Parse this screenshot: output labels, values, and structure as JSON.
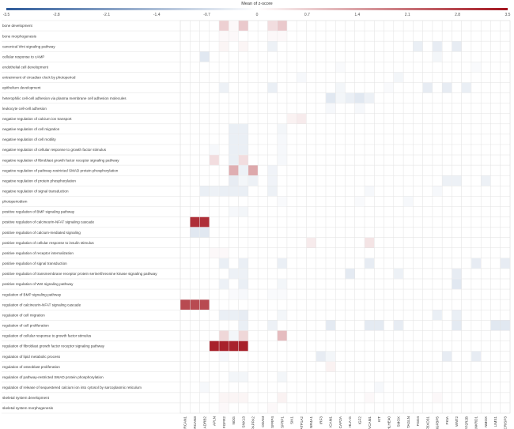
{
  "chart_data": {
    "type": "heatmap",
    "title": "Mean of z-score",
    "colorbar": {
      "min": -3.5,
      "max": 3.5,
      "ticks": [
        "-3.5",
        "-2.8",
        "-2.1",
        "-1.4",
        "-0.7",
        "0",
        "0.7",
        "1.4",
        "2.1",
        "2.8",
        "3.5"
      ],
      "colors": {
        "neg": "#2e5b9a",
        "mid": "#ffffff",
        "pos": "#a3141e"
      }
    },
    "grid": true,
    "rows": [
      "bone development",
      "bone morphogenesis",
      "canonical Wnt signaling pathway",
      "cellular response to cAMP",
      "endothelial cell development",
      "entrainment of circadian clock by photoperiod",
      "epithelium development",
      "heterophilic cell-cell adhesion via plasma membrane cell adhesion molecules",
      "leukocyte cell-cell adhesion",
      "negative regulation of calcium ion transport",
      "negative regulation of cell migration",
      "negative regulation of cell motility",
      "negative regulation of cellular response to growth factor stimulus",
      "negative regulation of fibroblast growth factor receptor signaling pathway",
      "negative regulation of pathway-restricted SMAD protein phosphorylation",
      "negative regulation of protein phosphorylation",
      "negative regulation of signal transduction",
      "photoperiodism",
      "positive regulation of BMP signaling pathway",
      "positive regulation of calcineurin-NFAT signaling cascade",
      "positive regulation of calcium-mediated signaling",
      "positive regulation of cellular response to insulin stimulus",
      "positive regulation of receptor internalization",
      "positive regulation of signal transduction",
      "positive regulation of transmembrane receptor protein serine/threonine kinase signaling pathway",
      "positive regulation of Wnt signaling pathway",
      "regulation of BMP signaling pathway",
      "regulation of calcineurin-NFAT signaling cascade",
      "regulation of cell migration",
      "regulation of cell proliferation",
      "regulation of cellular response to growth factor stimulus",
      "regulation of fibroblast growth factor receptor signaling pathway",
      "regulation of lipid metabolic process",
      "regulation of osteoblast proliferation",
      "regulation of pathway-restricted SMAD protein phosphorylation",
      "regulation of release of sequestered calcium ion into cytosol by sarcoplasmic reticulum",
      "skeletal system development",
      "skeletal system morphogenesis"
    ],
    "columns": [
      "RCAN1",
      "RCAN3",
      "ADRB2",
      "APLN",
      "FGFR2",
      "NOG",
      "SNX13",
      "PAPPA2",
      "ODAM",
      "SFRP4",
      "SFRP1",
      "SIK1",
      "ATP1A2",
      "NR4A1",
      "IRF3",
      "ICAM1",
      "CAPZA",
      "HLA-G",
      "IGF2",
      "VCAM1",
      "KIT",
      "BHLHE40",
      "SMOX",
      "TAGLN",
      "FGD4",
      "FBXO31",
      "IGFBP5",
      "PKIA",
      "WNT2",
      "PPP2R2B",
      "ANKRD1",
      "NMOX",
      "LIMS1",
      "CRISP3"
    ],
    "cells": [
      [
        0,
        4,
        0.7
      ],
      [
        0,
        5,
        0.1
      ],
      [
        0,
        6,
        0.8
      ],
      [
        0,
        9,
        0.5
      ],
      [
        0,
        10,
        0.8
      ],
      [
        1,
        4,
        0.1
      ],
      [
        1,
        5,
        0.1
      ],
      [
        1,
        9,
        0.1
      ],
      [
        1,
        10,
        0.1
      ],
      [
        2,
        4,
        0.15
      ],
      [
        2,
        6,
        0.15
      ],
      [
        2,
        9,
        -0.3
      ],
      [
        2,
        26,
        -0.4
      ],
      [
        2,
        28,
        -0.4
      ],
      [
        2,
        24,
        -0.35
      ],
      [
        3,
        2,
        -0.5
      ],
      [
        3,
        26,
        -0.2
      ],
      [
        4,
        16,
        -0.1
      ],
      [
        4,
        30,
        -0.1
      ],
      [
        5,
        12,
        -0.15
      ],
      [
        5,
        22,
        -0.2
      ],
      [
        6,
        4,
        -0.3
      ],
      [
        6,
        9,
        -0.35
      ],
      [
        6,
        16,
        -0.2
      ],
      [
        6,
        21,
        -0.1
      ],
      [
        6,
        25,
        -0.4
      ],
      [
        6,
        27,
        -0.4
      ],
      [
        6,
        29,
        -0.35
      ],
      [
        7,
        15,
        -0.5
      ],
      [
        7,
        16,
        -0.2
      ],
      [
        7,
        17,
        -0.35
      ],
      [
        7,
        18,
        -0.5
      ],
      [
        7,
        19,
        -0.3
      ],
      [
        8,
        15,
        -0.15
      ],
      [
        8,
        18,
        -0.15
      ],
      [
        9,
        11,
        0.2
      ],
      [
        9,
        12,
        0.3
      ],
      [
        10,
        5,
        -0.35
      ],
      [
        10,
        6,
        -0.35
      ],
      [
        10,
        10,
        -0.2
      ],
      [
        11,
        5,
        -0.35
      ],
      [
        11,
        6,
        -0.35
      ],
      [
        11,
        10,
        -0.15
      ],
      [
        12,
        3,
        -0.15
      ],
      [
        12,
        5,
        -0.35
      ],
      [
        12,
        6,
        -0.35
      ],
      [
        12,
        10,
        -0.15
      ],
      [
        13,
        3,
        0.5
      ],
      [
        13,
        5,
        -0.35
      ],
      [
        13,
        6,
        0.5
      ],
      [
        13,
        10,
        -0.15
      ],
      [
        14,
        5,
        1.2
      ],
      [
        14,
        6,
        -0.3
      ],
      [
        14,
        7,
        1.3
      ],
      [
        14,
        9,
        -0.25
      ],
      [
        15,
        5,
        -0.4
      ],
      [
        15,
        6,
        -0.2
      ],
      [
        15,
        7,
        -0.3
      ],
      [
        15,
        9,
        -0.25
      ],
      [
        15,
        27,
        -0.3
      ],
      [
        15,
        28,
        -0.3
      ],
      [
        15,
        31,
        -0.3
      ],
      [
        16,
        2,
        -0.35
      ],
      [
        16,
        3,
        -0.3
      ],
      [
        16,
        4,
        -0.35
      ],
      [
        16,
        5,
        -0.35
      ],
      [
        16,
        6,
        -0.35
      ],
      [
        16,
        9,
        -0.3
      ],
      [
        16,
        19,
        -0.15
      ],
      [
        16,
        26,
        -0.15
      ],
      [
        17,
        10,
        -0.1
      ],
      [
        17,
        18,
        -0.1
      ],
      [
        17,
        23,
        -0.15
      ],
      [
        18,
        5,
        -0.15
      ],
      [
        18,
        6,
        -0.2
      ],
      [
        19,
        1,
        3.1
      ],
      [
        19,
        2,
        3.1
      ],
      [
        20,
        1,
        -0.5
      ],
      [
        20,
        2,
        -0.5
      ],
      [
        21,
        13,
        0.3
      ],
      [
        21,
        19,
        0.4
      ],
      [
        22,
        3,
        0.1
      ],
      [
        22,
        4,
        0.1
      ],
      [
        23,
        4,
        -0.35
      ],
      [
        23,
        6,
        -0.35
      ],
      [
        23,
        10,
        -0.35
      ],
      [
        23,
        19,
        -0.4
      ],
      [
        23,
        30,
        -0.4
      ],
      [
        23,
        33,
        -0.4
      ],
      [
        24,
        5,
        -0.3
      ],
      [
        24,
        6,
        -0.3
      ],
      [
        24,
        17,
        -0.45
      ],
      [
        24,
        22,
        -0.3
      ],
      [
        24,
        28,
        -0.4
      ],
      [
        25,
        4,
        -0.3
      ],
      [
        25,
        6,
        -0.35
      ],
      [
        25,
        10,
        -0.2
      ],
      [
        25,
        28,
        -0.5
      ],
      [
        26,
        5,
        -0.1
      ],
      [
        26,
        6,
        -0.15
      ],
      [
        26,
        9,
        -0.1
      ],
      [
        26,
        10,
        -0.1
      ],
      [
        27,
        0,
        2.7
      ],
      [
        27,
        1,
        2.7
      ],
      [
        27,
        2,
        2.7
      ],
      [
        28,
        4,
        -0.35
      ],
      [
        28,
        5,
        -0.35
      ],
      [
        28,
        6,
        -0.4
      ],
      [
        28,
        10,
        -0.2
      ],
      [
        28,
        26,
        -0.35
      ],
      [
        28,
        28,
        -0.35
      ],
      [
        29,
        6,
        -0.35
      ],
      [
        29,
        9,
        -0.3
      ],
      [
        29,
        15,
        -0.45
      ],
      [
        29,
        19,
        -0.45
      ],
      [
        29,
        20,
        -0.45
      ],
      [
        29,
        22,
        -0.4
      ],
      [
        29,
        28,
        -0.45
      ],
      [
        29,
        32,
        -0.5
      ],
      [
        29,
        33,
        -0.5
      ],
      [
        30,
        4,
        0.6
      ],
      [
        30,
        5,
        -0.2
      ],
      [
        30,
        6,
        0.6
      ],
      [
        30,
        10,
        1.0
      ],
      [
        31,
        3,
        3.3
      ],
      [
        31,
        4,
        3.3
      ],
      [
        31,
        5,
        3.3
      ],
      [
        31,
        6,
        3.3
      ],
      [
        32,
        4,
        -0.15
      ],
      [
        32,
        14,
        -0.4
      ],
      [
        32,
        15,
        -0.2
      ],
      [
        32,
        27,
        -0.4
      ],
      [
        32,
        30,
        -0.4
      ],
      [
        33,
        15,
        0.2
      ],
      [
        34,
        5,
        -0.2
      ],
      [
        34,
        6,
        -0.2
      ],
      [
        34,
        10,
        -0.2
      ],
      [
        35,
        2,
        -0.15
      ],
      [
        35,
        20,
        -0.15
      ],
      [
        36,
        4,
        0.15
      ],
      [
        36,
        5,
        0.15
      ],
      [
        36,
        6,
        0.15
      ],
      [
        36,
        10,
        0.2
      ],
      [
        36,
        19,
        0.1
      ],
      [
        36,
        26,
        0.1
      ],
      [
        37,
        4,
        0.1
      ],
      [
        37,
        9,
        0.1
      ]
    ]
  }
}
